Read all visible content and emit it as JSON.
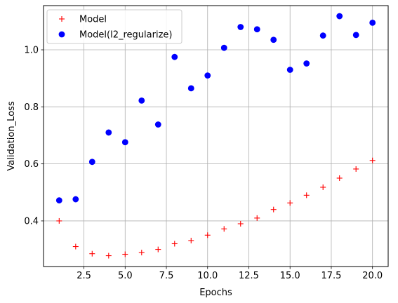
{
  "chart_data": {
    "type": "scatter",
    "title": "",
    "xlabel": "Epochs",
    "ylabel": "Validation_Loss",
    "xlim": [
      0.05,
      20.95
    ],
    "ylim": [
      0.24,
      1.155
    ],
    "x_ticks": [
      2.5,
      5.0,
      7.5,
      10.0,
      12.5,
      15.0,
      17.5,
      20.0
    ],
    "x_tick_labels": [
      "2.5",
      "5.0",
      "7.5",
      "10.0",
      "12.5",
      "15.0",
      "17.5",
      "20.0"
    ],
    "y_ticks": [
      0.4,
      0.6,
      0.8,
      1.0
    ],
    "y_tick_labels": [
      "0.4",
      "0.6",
      "0.8",
      "1.0"
    ],
    "grid": true,
    "legend_position": "top-left",
    "series": [
      {
        "name": "Model",
        "marker": "plus",
        "color": "#ff0000",
        "x": [
          1,
          2,
          3,
          4,
          5,
          6,
          7,
          8,
          9,
          10,
          11,
          12,
          13,
          14,
          15,
          16,
          17,
          18,
          19,
          20
        ],
        "y": [
          0.4,
          0.31,
          0.285,
          0.278,
          0.283,
          0.289,
          0.3,
          0.32,
          0.331,
          0.35,
          0.372,
          0.39,
          0.41,
          0.44,
          0.463,
          0.49,
          0.518,
          0.55,
          0.582,
          0.612
        ]
      },
      {
        "name": "Model(l2_regularize)",
        "marker": "circle",
        "color": "#0000ff",
        "x": [
          1,
          2,
          3,
          4,
          5,
          6,
          7,
          8,
          9,
          10,
          11,
          12,
          13,
          14,
          15,
          16,
          17,
          18,
          19,
          20
        ],
        "y": [
          0.472,
          0.476,
          0.607,
          0.71,
          0.676,
          0.822,
          0.738,
          0.975,
          0.865,
          0.91,
          1.007,
          1.08,
          1.072,
          1.035,
          0.93,
          0.952,
          1.05,
          1.118,
          1.052,
          1.095
        ]
      }
    ]
  }
}
